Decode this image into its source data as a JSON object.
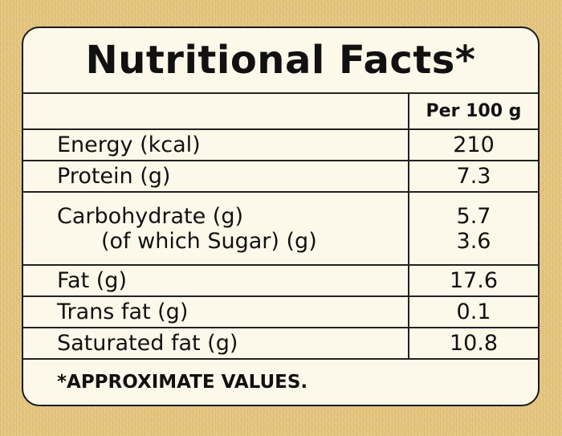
{
  "title": "Nutritional Facts*",
  "column_header": "Per 100 g",
  "rows": [
    {
      "label": "Energy (kcal)",
      "value": "210"
    },
    {
      "label": "Protein (g)",
      "value": "7.3"
    },
    {
      "label": "Carbohydrate (g)",
      "value": "5.7",
      "sub_label": "(of which Sugar) (g)",
      "sub_value": "3.6"
    },
    {
      "label": "Fat (g)",
      "value": "17.6"
    },
    {
      "label": "Trans fat (g)",
      "value": "0.1"
    },
    {
      "label": "Saturated fat (g)",
      "value": "10.8"
    }
  ],
  "footnote": "*APPROXIMATE VALUES."
}
